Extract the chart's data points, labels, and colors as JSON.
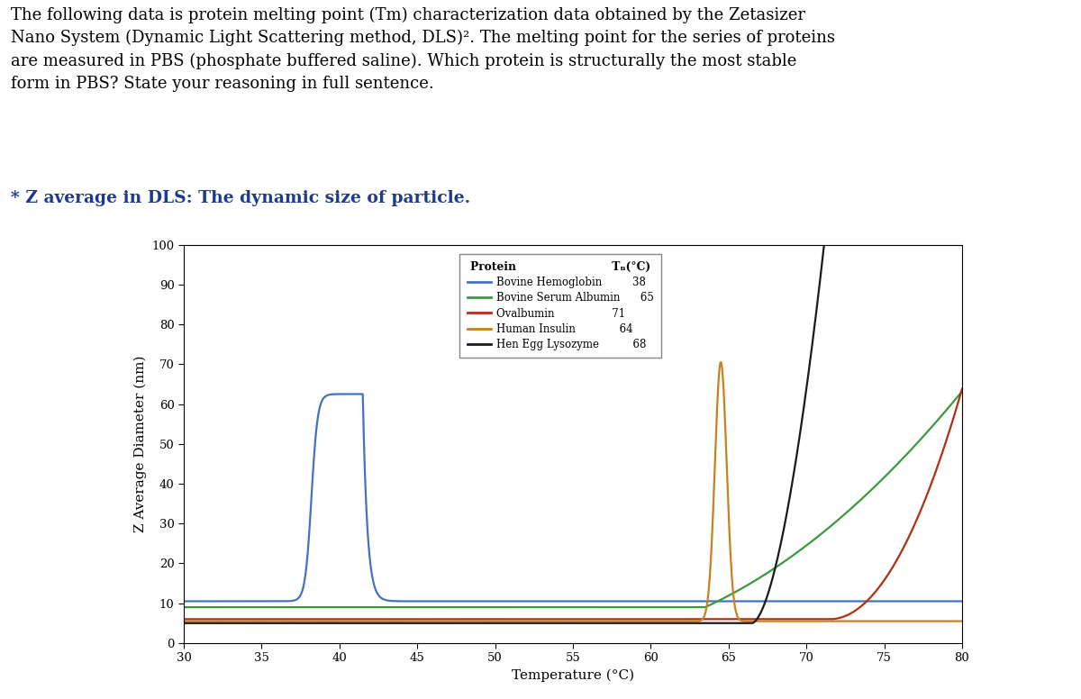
{
  "title_text": "The following data is protein melting point (Tm) characterization data obtained by the Zetasizer\nNano System (Dynamic Light Scattering method, DLS)². The melting point for the series of proteins\nare measured in PBS (phosphate buffered saline). Which protein is structurally the most stable\nform in PBS? State your reasoning in full sentence.",
  "subtitle_text": "* Z average in DLS: The dynamic size of particle.",
  "xlabel": "Temperature (°C)",
  "ylabel": "Z Average Diameter (nm)",
  "xlim": [
    30,
    80
  ],
  "ylim": [
    0,
    100
  ],
  "xticks": [
    30,
    35,
    40,
    45,
    50,
    55,
    60,
    65,
    70,
    75,
    80
  ],
  "yticks": [
    0,
    10,
    20,
    30,
    40,
    50,
    60,
    70,
    80,
    90,
    100
  ],
  "proteins": [
    {
      "name": "Bovine Hemoglobin",
      "tm": 38,
      "color": "#4472c0",
      "lw": 1.6
    },
    {
      "name": "Bovine Serum Albumin",
      "tm": 65,
      "color": "#3a9a3a",
      "lw": 1.6
    },
    {
      "name": "Ovalbumin",
      "tm": 71,
      "color": "#b03010",
      "lw": 1.6
    },
    {
      "name": "Human Insulin",
      "tm": 64,
      "color": "#c88020",
      "lw": 1.6
    },
    {
      "name": "Hen Egg Lysozyme",
      "tm": 68,
      "color": "#1a1a1a",
      "lw": 1.6
    }
  ],
  "background_color": "#ffffff",
  "plot_bg_color": "#ffffff",
  "title_color": "#000000",
  "subtitle_color": "#1e3a8a",
  "legend_title_col1": "Protein",
  "legend_title_col2": "Tₙ(°C)"
}
